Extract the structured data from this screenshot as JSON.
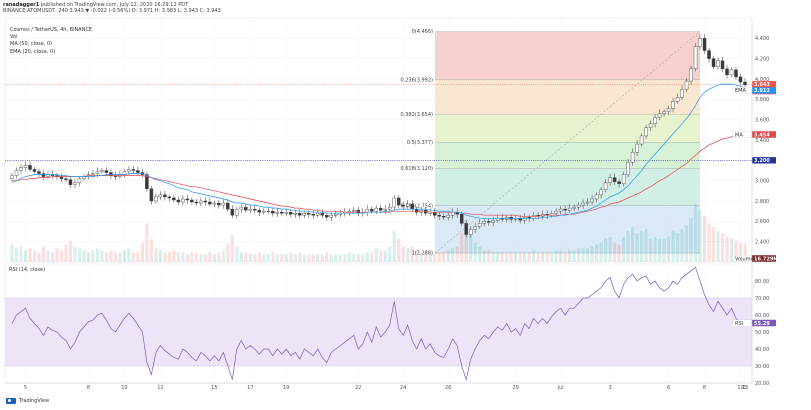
{
  "header": {
    "author": "ranadagger1",
    "published": "published on TradingView.com, July 12, 2020 16:29:12 PDT",
    "quote": "BINANCE:ATOMUSDT, 240  3.943  ▼ -0.022 (-0.56%)  O: 3.971  H: 3.983  L: 3.943  C: 3.943"
  },
  "legend": {
    "title": "Cosmos / TetherUS, 4h, BINANCE",
    "vol": "Vol",
    "ma": "MA (50, close, 0)",
    "ema": "EMA (20, close, 0)"
  },
  "footer": {
    "brand": "TradingView"
  },
  "colors": {
    "up": "#26a69a",
    "down": "#ef5350",
    "candle": "#3a3a3a",
    "ema": "#2196f3",
    "ma": "#e0474c",
    "rsi": "#7e57c2",
    "rsi_band": "#ede4f7",
    "fib_0": "#f3c8c6",
    "fib_236": "#f9e3c8",
    "fib_382": "#e3f0c7",
    "fib_5": "#cfeecf",
    "fib_618": "#c9ece3",
    "fib_786": "#d4e5f4",
    "fib_1": "#e6e6e6"
  },
  "chart_data": [
    {
      "type": "candlestick",
      "title": "Cosmos / TetherUS, 4h, BINANCE",
      "ylim": [
        2.2,
        4.6
      ],
      "y_ticks": [
        "4.400",
        "4.200",
        "4.000",
        "3.800",
        "3.600",
        "3.400",
        "3.200",
        "3.000",
        "2.800",
        "2.600",
        "2.400"
      ],
      "x_ticks": [
        "5",
        "8",
        "10",
        "12",
        "15",
        "17",
        "19",
        "22",
        "24",
        "26",
        "29",
        "Jul",
        "3",
        "6",
        "8",
        "10",
        "13",
        "1"
      ],
      "price_tags": {
        "last": "3.943",
        "countdown": "01:30:54",
        "ema": "3.912",
        "ma": "3.454",
        "level": "3.200",
        "volume": "16.729M"
      },
      "tag_labels": {
        "ema": "EMA",
        "ma": "MA",
        "volume": "Volume"
      },
      "horizontal_level": 3.2,
      "fibonacci": [
        {
          "label": "0(4.466)",
          "price": 4.466
        },
        {
          "label": "0.236(3.992)",
          "price": 3.992
        },
        {
          "label": "0.382(3.654)",
          "price": 3.654
        },
        {
          "label": "0.5(3.377)",
          "price": 3.377
        },
        {
          "label": "0.618(3.120)",
          "price": 3.12
        },
        {
          "label": "0.786(2.754)",
          "price": 2.754
        },
        {
          "label": "1(2.288)",
          "price": 2.288
        }
      ],
      "close": [
        3.05,
        3.1,
        3.13,
        3.15,
        3.11,
        3.09,
        3.07,
        3.04,
        3.06,
        3.05,
        3.04,
        3.02,
        3.01,
        2.96,
        2.98,
        3.02,
        3.04,
        3.06,
        3.07,
        3.09,
        3.1,
        3.08,
        3.05,
        3.04,
        3.06,
        3.09,
        3.11,
        3.1,
        3.08,
        3.06,
        2.92,
        2.8,
        2.84,
        2.86,
        2.84,
        2.83,
        2.81,
        2.79,
        2.82,
        2.81,
        2.79,
        2.78,
        2.8,
        2.79,
        2.77,
        2.78,
        2.76,
        2.78,
        2.72,
        2.66,
        2.72,
        2.74,
        2.71,
        2.72,
        2.71,
        2.69,
        2.7,
        2.7,
        2.68,
        2.69,
        2.68,
        2.69,
        2.67,
        2.68,
        2.66,
        2.68,
        2.67,
        2.66,
        2.68,
        2.66,
        2.64,
        2.66,
        2.67,
        2.68,
        2.69,
        2.7,
        2.71,
        2.68,
        2.69,
        2.72,
        2.7,
        2.73,
        2.71,
        2.72,
        2.74,
        2.83,
        2.76,
        2.75,
        2.77,
        2.72,
        2.69,
        2.71,
        2.68,
        2.69,
        2.66,
        2.65,
        2.64,
        2.66,
        2.69,
        2.67,
        2.58,
        2.47,
        2.52,
        2.55,
        2.58,
        2.6,
        2.59,
        2.61,
        2.63,
        2.62,
        2.64,
        2.62,
        2.63,
        2.61,
        2.64,
        2.63,
        2.66,
        2.65,
        2.67,
        2.66,
        2.68,
        2.7,
        2.72,
        2.71,
        2.73,
        2.74,
        2.76,
        2.78,
        2.79,
        2.82,
        2.86,
        2.91,
        2.98,
        3.03,
        2.99,
        2.97,
        3.06,
        3.18,
        3.28,
        3.36,
        3.44,
        3.52,
        3.56,
        3.62,
        3.66,
        3.68,
        3.71,
        3.78,
        3.82,
        3.9,
        3.98,
        4.1,
        4.32,
        4.4,
        4.28,
        4.2,
        4.12,
        4.18,
        4.1,
        4.04,
        4.09,
        4.02,
        3.97,
        3.943
      ],
      "volume": [
        0.9,
        0.7,
        0.8,
        0.6,
        0.7,
        0.6,
        0.5,
        0.8,
        0.6,
        0.5,
        0.7,
        0.6,
        0.9,
        1.1,
        0.8,
        0.7,
        0.6,
        0.5,
        0.6,
        0.7,
        0.6,
        0.5,
        0.6,
        0.5,
        0.5,
        0.6,
        0.7,
        0.5,
        0.5,
        1.0,
        2.0,
        1.2,
        0.7,
        0.6,
        0.5,
        0.5,
        0.6,
        0.5,
        0.5,
        0.4,
        0.5,
        0.5,
        0.4,
        0.4,
        0.5,
        0.4,
        0.5,
        0.6,
        0.9,
        1.4,
        0.8,
        0.5,
        0.5,
        0.4,
        0.4,
        0.5,
        0.4,
        0.4,
        0.5,
        0.4,
        0.4,
        0.4,
        0.5,
        0.4,
        0.5,
        0.4,
        0.4,
        0.4,
        0.4,
        0.4,
        0.5,
        0.4,
        0.4,
        0.4,
        0.4,
        0.5,
        0.4,
        0.4,
        0.4,
        0.5,
        0.5,
        0.7,
        0.6,
        0.6,
        0.8,
        1.6,
        1.2,
        0.8,
        0.7,
        0.8,
        0.6,
        0.5,
        0.5,
        0.5,
        0.5,
        0.5,
        0.5,
        0.6,
        0.7,
        0.8,
        1.5,
        2.2,
        1.4,
        1.0,
        0.8,
        0.6,
        0.6,
        0.5,
        0.5,
        0.5,
        0.5,
        0.5,
        0.5,
        0.5,
        0.5,
        0.5,
        0.6,
        0.5,
        0.5,
        0.5,
        0.5,
        0.6,
        0.6,
        0.5,
        0.6,
        0.6,
        0.7,
        0.7,
        0.7,
        0.8,
        0.9,
        1.0,
        1.2,
        1.3,
        1.0,
        0.9,
        1.3,
        1.6,
        1.8,
        1.5,
        1.6,
        1.7,
        1.2,
        1.3,
        1.2,
        1.2,
        1.3,
        1.6,
        1.5,
        1.7,
        1.9,
        2.3,
        3.0,
        2.7,
        2.4,
        2.0,
        1.8,
        1.6,
        1.5,
        1.3,
        1.2,
        1.1,
        1.0,
        0.9
      ],
      "ma50": [
        3.0,
        3.0,
        3.01,
        3.01,
        3.02,
        3.02,
        3.03,
        3.03,
        3.03,
        3.04,
        3.04,
        3.04,
        3.04,
        3.04,
        3.04,
        3.04,
        3.04,
        3.05,
        3.05,
        3.05,
        3.05,
        3.05,
        3.05,
        3.05,
        3.05,
        3.05,
        3.05,
        3.05,
        3.05,
        3.05,
        3.04,
        3.03,
        3.02,
        3.01,
        3.0,
        2.99,
        2.98,
        2.97,
        2.96,
        2.95,
        2.94,
        2.94,
        2.93,
        2.92,
        2.91,
        2.9,
        2.89,
        2.88,
        2.87,
        2.86,
        2.85,
        2.84,
        2.83,
        2.82,
        2.81,
        2.8,
        2.79,
        2.78,
        2.77,
        2.76,
        2.75,
        2.75,
        2.74,
        2.73,
        2.73,
        2.72,
        2.72,
        2.71,
        2.71,
        2.7,
        2.7,
        2.7,
        2.7,
        2.7,
        2.69,
        2.69,
        2.69,
        2.69,
        2.69,
        2.69,
        2.69,
        2.69,
        2.69,
        2.69,
        2.69,
        2.7,
        2.7,
        2.7,
        2.7,
        2.7,
        2.7,
        2.7,
        2.7,
        2.69,
        2.69,
        2.69,
        2.69,
        2.69,
        2.69,
        2.69,
        2.68,
        2.68,
        2.67,
        2.67,
        2.67,
        2.66,
        2.66,
        2.66,
        2.66,
        2.66,
        2.66,
        2.66,
        2.66,
        2.65,
        2.65,
        2.65,
        2.65,
        2.65,
        2.66,
        2.66,
        2.66,
        2.66,
        2.66,
        2.67,
        2.67,
        2.67,
        2.68,
        2.69,
        2.7,
        2.71,
        2.72,
        2.74,
        2.75,
        2.77,
        2.78,
        2.79,
        2.81,
        2.83,
        2.85,
        2.87,
        2.89,
        2.92,
        2.94,
        2.97,
        3.0,
        3.02,
        3.05,
        3.08,
        3.11,
        3.14,
        3.17,
        3.21,
        3.25,
        3.29,
        3.32,
        3.35,
        3.37,
        3.39,
        3.41,
        3.42,
        3.43,
        3.44,
        3.45,
        3.454
      ],
      "ema20": [
        2.98,
        3.0,
        3.02,
        3.04,
        3.05,
        3.06,
        3.06,
        3.06,
        3.06,
        3.06,
        3.06,
        3.05,
        3.05,
        3.04,
        3.04,
        3.04,
        3.04,
        3.04,
        3.04,
        3.05,
        3.05,
        3.06,
        3.06,
        3.06,
        3.06,
        3.06,
        3.07,
        3.07,
        3.07,
        3.07,
        3.05,
        3.03,
        3.01,
        3.0,
        2.98,
        2.97,
        2.95,
        2.93,
        2.92,
        2.91,
        2.89,
        2.88,
        2.87,
        2.86,
        2.85,
        2.84,
        2.83,
        2.82,
        2.81,
        2.79,
        2.78,
        2.78,
        2.77,
        2.76,
        2.76,
        2.75,
        2.74,
        2.74,
        2.73,
        2.73,
        2.72,
        2.72,
        2.71,
        2.71,
        2.7,
        2.7,
        2.7,
        2.69,
        2.69,
        2.69,
        2.68,
        2.68,
        2.68,
        2.68,
        2.68,
        2.68,
        2.68,
        2.68,
        2.68,
        2.69,
        2.69,
        2.69,
        2.69,
        2.7,
        2.7,
        2.71,
        2.72,
        2.72,
        2.72,
        2.72,
        2.72,
        2.72,
        2.72,
        2.71,
        2.71,
        2.7,
        2.7,
        2.7,
        2.69,
        2.69,
        2.68,
        2.66,
        2.65,
        2.64,
        2.63,
        2.63,
        2.63,
        2.63,
        2.63,
        2.63,
        2.63,
        2.63,
        2.63,
        2.63,
        2.63,
        2.63,
        2.63,
        2.63,
        2.64,
        2.64,
        2.65,
        2.65,
        2.66,
        2.66,
        2.67,
        2.68,
        2.69,
        2.7,
        2.71,
        2.73,
        2.75,
        2.78,
        2.81,
        2.84,
        2.86,
        2.88,
        2.91,
        2.95,
        3.0,
        3.05,
        3.1,
        3.16,
        3.21,
        3.26,
        3.31,
        3.36,
        3.41,
        3.46,
        3.51,
        3.56,
        3.61,
        3.67,
        3.74,
        3.82,
        3.87,
        3.9,
        3.92,
        3.94,
        3.95,
        3.95,
        3.95,
        3.94,
        3.93,
        3.912
      ]
    },
    {
      "type": "line",
      "title": "RSI (14, close)",
      "ylim": [
        20,
        90
      ],
      "y_ticks": [
        "80.00",
        "70.00",
        "60.00",
        "50.00",
        "40.00",
        "30.00",
        "20.00"
      ],
      "band": [
        30,
        70
      ],
      "last_tag": "55.29",
      "tag_label": "RSI",
      "values": [
        55,
        60,
        62,
        64,
        58,
        55,
        52,
        48,
        53,
        51,
        50,
        47,
        45,
        40,
        44,
        50,
        53,
        56,
        57,
        60,
        61,
        57,
        52,
        50,
        54,
        58,
        61,
        58,
        54,
        50,
        32,
        25,
        38,
        42,
        39,
        37,
        35,
        34,
        40,
        38,
        35,
        33,
        38,
        36,
        33,
        36,
        33,
        38,
        30,
        22,
        40,
        45,
        40,
        42,
        40,
        37,
        40,
        40,
        36,
        40,
        37,
        40,
        36,
        38,
        34,
        40,
        38,
        36,
        40,
        35,
        32,
        38,
        40,
        42,
        44,
        46,
        48,
        40,
        43,
        50,
        44,
        53,
        47,
        50,
        54,
        68,
        52,
        48,
        54,
        45,
        40,
        46,
        40,
        43,
        38,
        36,
        35,
        40,
        46,
        42,
        30,
        22,
        34,
        40,
        45,
        48,
        46,
        50,
        53,
        51,
        55,
        50,
        52,
        48,
        55,
        52,
        58,
        55,
        58,
        55,
        59,
        62,
        64,
        60,
        64,
        64,
        67,
        70,
        70,
        72,
        74,
        76,
        80,
        82,
        74,
        70,
        78,
        82,
        84,
        80,
        82,
        83,
        78,
        80,
        76,
        74,
        76,
        80,
        78,
        82,
        84,
        86,
        88,
        80,
        72,
        66,
        62,
        68,
        64,
        60,
        64,
        58,
        56,
        55.29
      ]
    }
  ]
}
